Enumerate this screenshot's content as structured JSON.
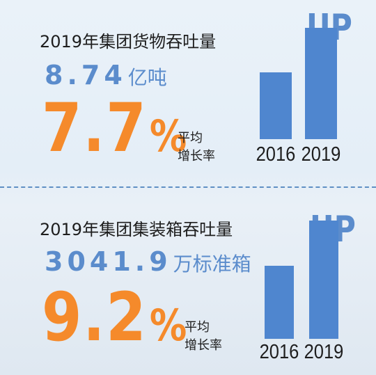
{
  "chart_data": [
    {
      "type": "bar",
      "title": "2019年集团货物吞吐量",
      "value": "8.74",
      "unit": "亿吨",
      "growth": "7.7",
      "growth_sign": "%",
      "growth_label_1": "平均",
      "growth_label_2": "增长率",
      "badge": "UP",
      "categories": [
        "2016",
        "2019"
      ],
      "values": [
        0.55,
        0.92
      ],
      "bar_color": "#4f86cf"
    },
    {
      "type": "bar",
      "title": "2019年集团集装箱吞吐量",
      "value": "3041.9",
      "unit": "万标准箱",
      "growth": "9.2",
      "growth_sign": "%",
      "growth_label_1": "平均",
      "growth_label_2": "增长率",
      "badge": "UP",
      "categories": [
        "2016",
        "2019"
      ],
      "values": [
        0.55,
        0.89
      ],
      "bar_color": "#4f86cf"
    }
  ],
  "colors": {
    "value_blue": "#5b8ccc",
    "growth_orange": "#f58a2b"
  }
}
